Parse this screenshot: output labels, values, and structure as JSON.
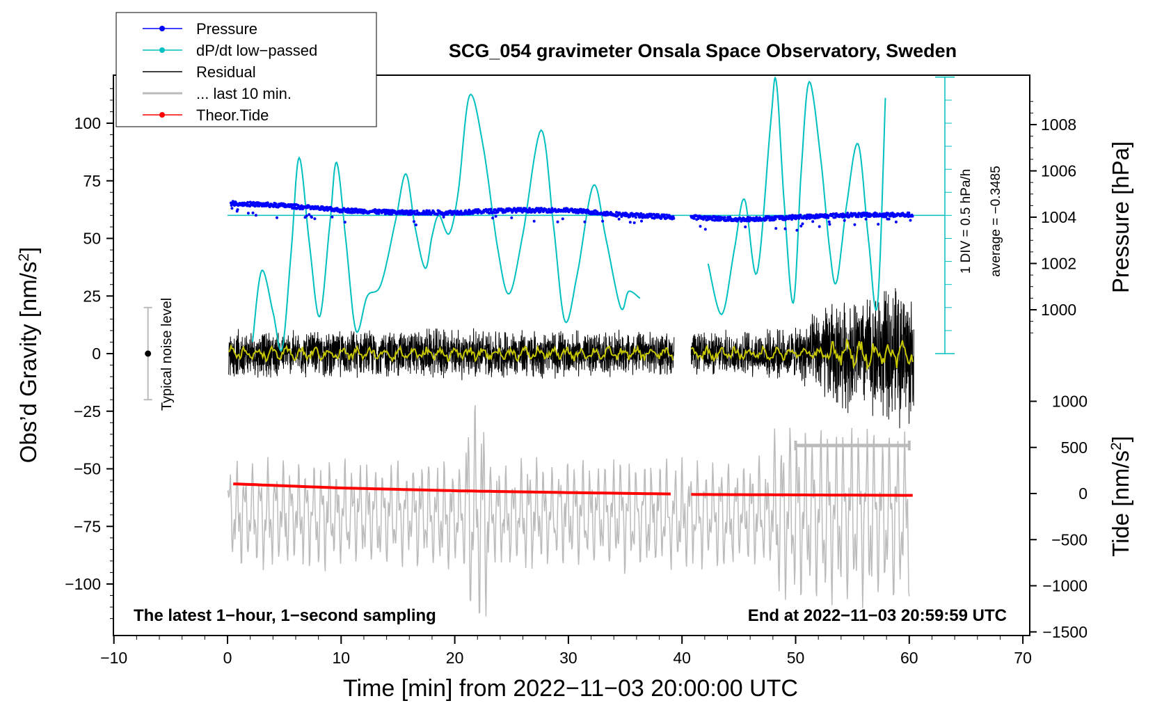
{
  "chart_data": {
    "type": "line",
    "title": "SCG_054 gravimeter Onsala Space Observatory, Sweden",
    "xlabel": "Time [min] from 2022−11−03 20:00:00 UTC",
    "ylabel_left": "Obs’d Gravity [nm/s²]",
    "ylabel_right_pressure": "Pressure [hPa]",
    "ylabel_right_tide": "Tide [nm/s²]",
    "xlim": [
      -10,
      70
    ],
    "ylim": [
      -120,
      120
    ],
    "x_ticks": [
      -10,
      0,
      10,
      20,
      30,
      40,
      50,
      60,
      70
    ],
    "x_tick_labels": [
      "−10",
      "0",
      "10",
      "20",
      "30",
      "40",
      "50",
      "60",
      "70"
    ],
    "y_ticks": [
      100,
      75,
      50,
      25,
      0,
      -25,
      -50,
      -75,
      -100
    ],
    "y_tick_labels": [
      "100",
      "75",
      "50",
      "25",
      "0",
      "−25",
      "−50",
      "−75",
      "−100"
    ],
    "pressure_ticks": [
      1008,
      1006,
      1004,
      1002,
      1000
    ],
    "pressure_tick_labels": [
      "1008",
      "1006",
      "1004",
      "1002",
      "1000"
    ],
    "tide_ticks": [
      1000,
      500,
      0,
      -500,
      -1000,
      -1500
    ],
    "tide_tick_labels": [
      "1000",
      "500",
      "0",
      "−500",
      "−1000",
      "−1500"
    ],
    "legend": [
      {
        "label": "Pressure",
        "color": "#0000ff",
        "marker": true
      },
      {
        "label": "dP/dt low−passed",
        "color": "#00c0c0",
        "marker": true
      },
      {
        "label": "Residual",
        "color": "#000000",
        "marker": false
      },
      {
        "label": "... last 10 min.",
        "color": "#bbbbbb",
        "marker": false
      },
      {
        "label": "Theor.Tide",
        "color": "#ff0000",
        "marker": true
      }
    ],
    "legend_position": "top-left",
    "annotations": {
      "bottom_left": "The latest 1−hour, 1−second sampling",
      "bottom_right": "End at 2022−11−03 20:59:59 UTC",
      "noise_label": "Typical noise level",
      "noise_range": [
        -20,
        20
      ],
      "noise_x": -7,
      "dpdt_div": "1 DIV = 0.5 hPa/h",
      "dpdt_avg": "average = −0.3485"
    },
    "colors": {
      "pressure": "#0000ff",
      "dpdt": "#00c0c0",
      "residual": "#000000",
      "smoothed": "#c8c800",
      "last10": "#bbbbbb",
      "tide": "#ff0000"
    },
    "series": [
      {
        "name": "Pressure",
        "units": "hPa",
        "x": [
          0.3,
          5,
          10,
          15,
          20,
          25,
          30,
          35,
          39.3,
          40.8,
          45,
          50,
          55,
          60.3
        ],
        "values": [
          1004.6,
          1004.5,
          1004.3,
          1004.2,
          1004.2,
          1004.3,
          1004.3,
          1004.1,
          1004.0,
          1004.0,
          1003.9,
          1004.0,
          1004.1,
          1004.1
        ]
      },
      {
        "name": "dP/dt low−passed",
        "units": "gravity-axis",
        "segments": [
          {
            "x": [
              2.2,
              3.0,
              4.0,
              4.8,
              5.6,
              6.3,
              7.2,
              8.1,
              9.0,
              9.6,
              10.4,
              11.3,
              12.3,
              13.5,
              14.8,
              15.7,
              16.5,
              17.4,
              18.0,
              18.6,
              19.5,
              20.3,
              21.3,
              22.5,
              23.8,
              24.8,
              26.0,
              27.6,
              28.7,
              29.7,
              30.8,
              32.2,
              33.3,
              34.6,
              35.3,
              36.3
            ],
            "values": [
              5,
              36,
              18,
              2,
              44,
              85,
              48,
              16,
              56,
              83,
              50,
              10,
              25,
              30,
              58,
              78,
              55,
              37,
              51,
              60,
              52,
              70,
              112,
              90,
              45,
              26,
              52,
              97,
              55,
              14,
              35,
              73,
              50,
              20,
              27,
              24
            ]
          },
          {
            "x": [
              42.3,
              43.5,
              44.6,
              45.5,
              46.6,
              47.8,
              48.3,
              49.0,
              49.8,
              50.5,
              51.2,
              52.2,
              53.0,
              53.6,
              54.5,
              55.5,
              56.4,
              57.2,
              57.9
            ],
            "values": [
              39,
              17,
              45,
              67,
              35,
              100,
              118,
              65,
              22,
              80,
              118,
              85,
              45,
              31,
              65,
              91,
              50,
              21,
              111
            ]
          }
        ]
      },
      {
        "name": "Residual",
        "units": "nm/s²",
        "segments": [
          [
            0.1,
            39.3
          ],
          [
            40.8,
            60.4
          ]
        ],
        "envelope": {
          "x": [
            0,
            10,
            20,
            30,
            39.3,
            40.8,
            50,
            53,
            56,
            60.4
          ],
          "amplitude": [
            11,
            11,
            12,
            11,
            10,
            10,
            12,
            25,
            28,
            36
          ]
        }
      },
      {
        "name": "Smoothed residual",
        "units": "nm/s²",
        "segments": [
          [
            0.1,
            39.3
          ],
          [
            40.8,
            60.4
          ]
        ],
        "amplitude": 3
      },
      {
        "name": "... last 10 min.",
        "units": "nm/s² (scaled x10, offset −70)",
        "x_range": [
          0,
          60
        ],
        "amplitude": 30,
        "offset": -70
      },
      {
        "name": "Theor.Tide",
        "units": "nm/s²",
        "x": [
          0.5,
          10,
          20,
          30,
          39.3,
          40.8,
          50,
          60.4
        ],
        "values": [
          105,
          60,
          30,
          10,
          -5,
          -10,
          -15,
          -20
        ]
      }
    ],
    "last10_window": [
      50,
      60
    ],
    "dpdt_baseline": 60,
    "dpdt_axis_ticks": [
      60,
      50,
      40,
      30,
      20,
      10,
      0
    ]
  }
}
